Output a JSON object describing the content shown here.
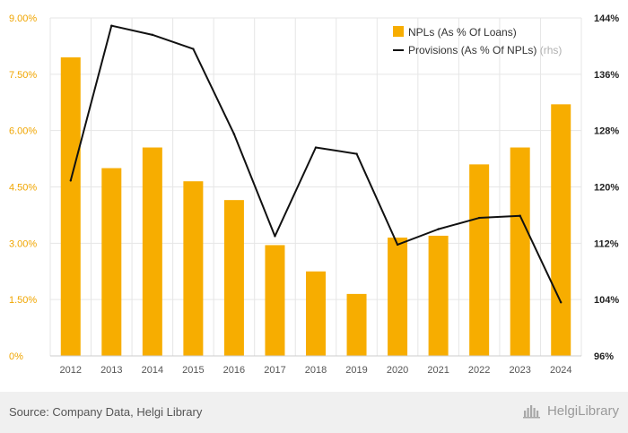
{
  "chart_data": {
    "type": "bar",
    "categories": [
      "2012",
      "2013",
      "2014",
      "2015",
      "2016",
      "2017",
      "2018",
      "2019",
      "2020",
      "2021",
      "2022",
      "2023",
      "2024"
    ],
    "series": [
      {
        "name": "NPLs (As % Of Loans)",
        "type": "bar",
        "axis": "left",
        "color": "#f7ad00",
        "values": [
          7.95,
          5.0,
          5.55,
          4.65,
          4.15,
          2.95,
          2.25,
          1.65,
          3.15,
          3.2,
          5.1,
          5.55,
          6.7
        ]
      },
      {
        "name": "Provisions (As % Of NPLs)",
        "type": "line",
        "axis": "right",
        "color": "#111111",
        "values": [
          120.9,
          142.9,
          141.6,
          139.6,
          127.5,
          113.0,
          125.6,
          124.7,
          111.8,
          114.0,
          115.6,
          115.9,
          103.6
        ]
      }
    ],
    "y_left": {
      "lim": [
        0,
        9
      ],
      "ticks": [
        0,
        1.5,
        3,
        4.5,
        6,
        7.5,
        9
      ],
      "tick_labels": [
        "0%",
        "1.50%",
        "3.00%",
        "4.50%",
        "6.00%",
        "7.50%",
        "9.00%"
      ]
    },
    "y_right": {
      "lim": [
        96,
        144
      ],
      "ticks": [
        96,
        104,
        112,
        120,
        128,
        136,
        144
      ],
      "tick_labels": [
        "96%",
        "104%",
        "112%",
        "120%",
        "128%",
        "136%",
        "144%"
      ]
    },
    "legend": {
      "position": "top-right",
      "items": [
        {
          "label": "NPLs (As % Of Loans)",
          "suffix": ""
        },
        {
          "label": "Provisions (As % Of NPLs)",
          "suffix": "(rhs)"
        }
      ]
    },
    "grid": true,
    "colors": {
      "bar": "#f7ad00",
      "line": "#111111",
      "left_tick": "#f0a500",
      "right_tick": "#222222",
      "x_tick": "#555555",
      "grid": "#e6e6e6"
    }
  },
  "footer": {
    "source": "Source: Company Data, Helgi Library",
    "brand": "HelgiLibrary",
    "brand_icon": "helgi-logo-icon"
  }
}
